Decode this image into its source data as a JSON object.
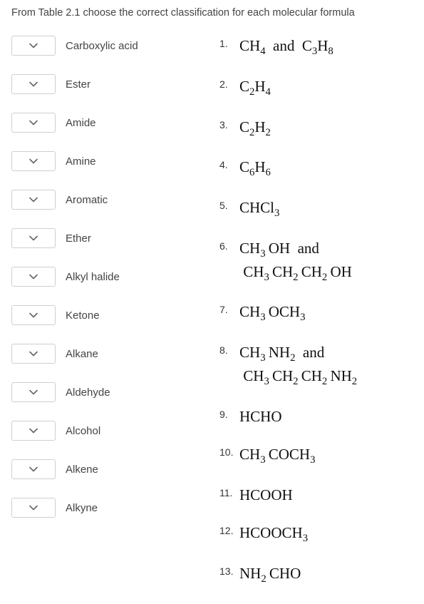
{
  "instruction": "From Table 2.1 choose the correct classification for each molecular formula",
  "classifications": [
    "Carboxylic acid",
    "Ester",
    "Amide",
    "Amine",
    "Aromatic",
    "Ether",
    "Alkyl halide",
    "Ketone",
    "Alkane",
    "Aldehyde",
    "Alcohol",
    "Alkene",
    "Alkyne"
  ],
  "formulas": [
    {
      "num": "1.",
      "html": "CH<sub>4</sub>&nbsp;&nbsp;and&nbsp;&nbsp;C<sub>3</sub>H<sub>8</sub>"
    },
    {
      "num": "2.",
      "html": "C<sub>2</sub>H<sub>4</sub>"
    },
    {
      "num": "3.",
      "html": "C<sub>2</sub>H<sub>2</sub>"
    },
    {
      "num": "4.",
      "html": "C<sub>6</sub>H<sub>6</sub>"
    },
    {
      "num": "5.",
      "html": "CHCl<sub>3</sub>"
    },
    {
      "num": "6.",
      "html": "CH<sub>3</sub>&#8201;OH&nbsp;&nbsp;and<br>&nbsp;CH<sub>3</sub>&#8201;CH<sub>2</sub>&#8201;CH<sub>2</sub>&#8201;OH"
    },
    {
      "num": "7.",
      "html": "CH<sub>3</sub>&#8201;OCH<sub>3</sub>"
    },
    {
      "num": "8.",
      "html": "CH<sub>3</sub>&#8201;NH<sub>2</sub>&nbsp;&nbsp;and<br>&nbsp;CH<sub>3</sub>&#8201;CH<sub>2</sub>&#8201;CH<sub>2</sub>&#8201;NH<sub>2</sub>"
    },
    {
      "num": "9.",
      "html": "HCHO"
    },
    {
      "num": "10.",
      "html": "CH<sub>3</sub>&#8201;COCH<sub>3</sub>"
    },
    {
      "num": "11.",
      "html": "HCOOH"
    },
    {
      "num": "12.",
      "html": "HCOOCH<sub>3</sub>"
    },
    {
      "num": "13.",
      "html": "NH<sub>2</sub>&#8201;CHO"
    }
  ],
  "colors": {
    "text": "#333333",
    "border": "#cfcfcf",
    "bg": "#ffffff"
  }
}
